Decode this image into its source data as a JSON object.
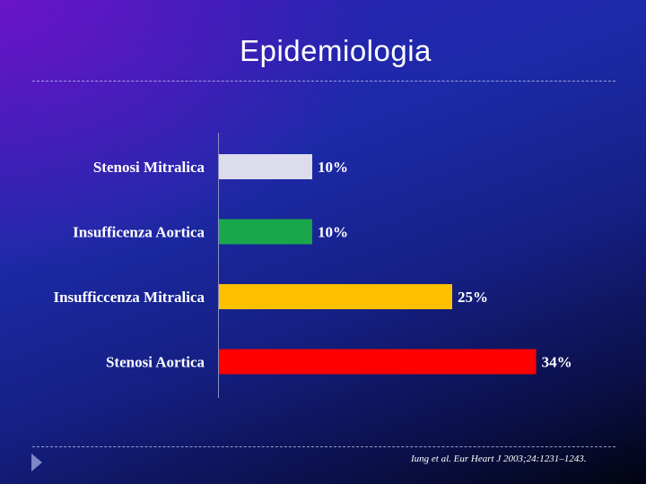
{
  "title": "Epidemiologia",
  "citation": "Iung et al. Eur Heart J 2003;24:1231–1243.",
  "colors": {
    "stenosi_mitralica": "#dcdcec",
    "insufficenza_aortica": "#1aa64a",
    "insufficcenza_mitralica": "#ffc000",
    "stenosi_aortica": "#ff0000"
  },
  "icons": {
    "nav": "triangle-right-icon"
  },
  "chart_data": {
    "type": "bar",
    "orientation": "horizontal",
    "title": "",
    "xlabel": "",
    "ylabel": "",
    "grid": false,
    "xlim": [
      0,
      40
    ],
    "categories": [
      "Stenosi Mitralica",
      "Insufficenza Aortica",
      "Insufficcenza Mitralica",
      "Stenosi Aortica"
    ],
    "values": [
      10,
      10,
      25,
      34
    ],
    "value_labels": [
      "10%",
      "10%",
      "25%",
      "34%"
    ],
    "bar_colors": [
      "#dcdcec",
      "#1aa64a",
      "#ffc000",
      "#ff0000"
    ]
  }
}
